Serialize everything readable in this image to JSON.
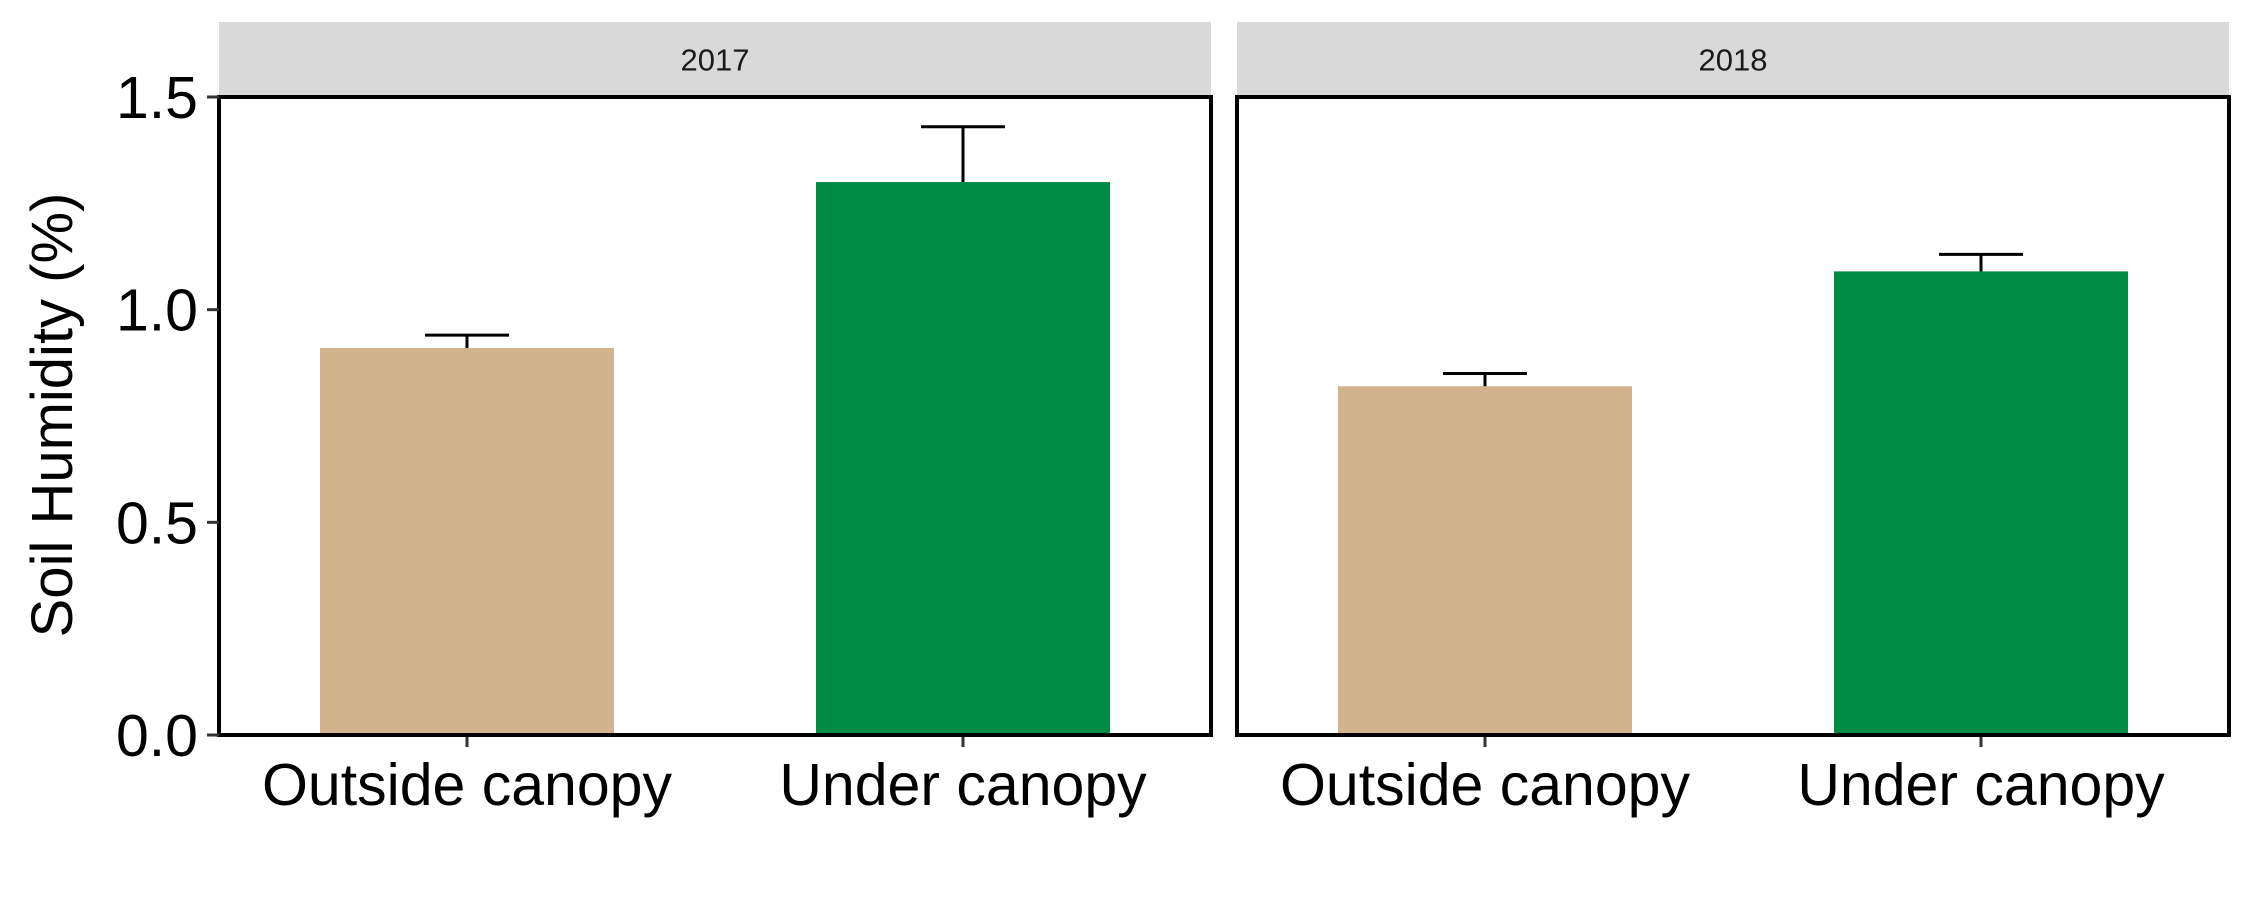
{
  "chart_data": {
    "type": "bar",
    "ylabel": "Soil Humidity (%)",
    "xlabel": "",
    "ylim": [
      0,
      1.5
    ],
    "yticks": [
      "0.0",
      "0.5",
      "1.0",
      "1.5"
    ],
    "categories": [
      "Outside canopy",
      "Under canopy"
    ],
    "category_colors": [
      "#d2b48c",
      "#008b45"
    ],
    "grid": false,
    "legend": "none",
    "panels": [
      {
        "strip": "2017",
        "values": [
          0.91,
          1.3
        ],
        "errors": [
          0.03,
          0.13
        ]
      },
      {
        "strip": "2018",
        "values": [
          0.82,
          1.09
        ],
        "errors": [
          0.03,
          0.04
        ]
      }
    ]
  }
}
